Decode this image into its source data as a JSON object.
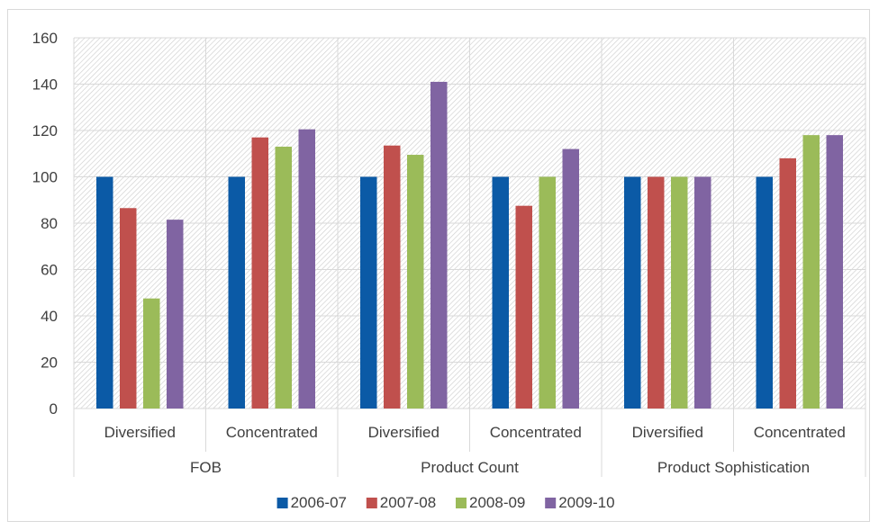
{
  "chart_data": {
    "type": "bar",
    "title": "",
    "xlabel": "",
    "ylabel": "",
    "ylim": [
      0,
      160
    ],
    "yticks": [
      0,
      20,
      40,
      60,
      80,
      100,
      120,
      140,
      160
    ],
    "grid": true,
    "legend_position": "bottom",
    "groups": [
      {
        "label": "FOB",
        "categories": [
          "Diversified",
          "Concentrated"
        ]
      },
      {
        "label": "Product Count",
        "categories": [
          "Diversified",
          "Concentrated"
        ]
      },
      {
        "label": "Product Sophistication",
        "categories": [
          "Diversified",
          "Concentrated"
        ]
      }
    ],
    "categories": [
      "Diversified",
      "Concentrated",
      "Diversified",
      "Concentrated",
      "Diversified",
      "Concentrated"
    ],
    "series": [
      {
        "name": "2006-07",
        "color": "#0b5aa6",
        "values": [
          100,
          100,
          100,
          100,
          100,
          100
        ]
      },
      {
        "name": "2007-08",
        "color": "#c0504d",
        "values": [
          86.5,
          117,
          113.5,
          87.5,
          100,
          108
        ]
      },
      {
        "name": "2008-09",
        "color": "#9bbb59",
        "values": [
          47.5,
          113,
          109.5,
          100,
          100,
          118
        ]
      },
      {
        "name": "2009-10",
        "color": "#8064a2",
        "values": [
          81.5,
          120.5,
          141,
          112,
          100,
          118
        ]
      }
    ]
  }
}
